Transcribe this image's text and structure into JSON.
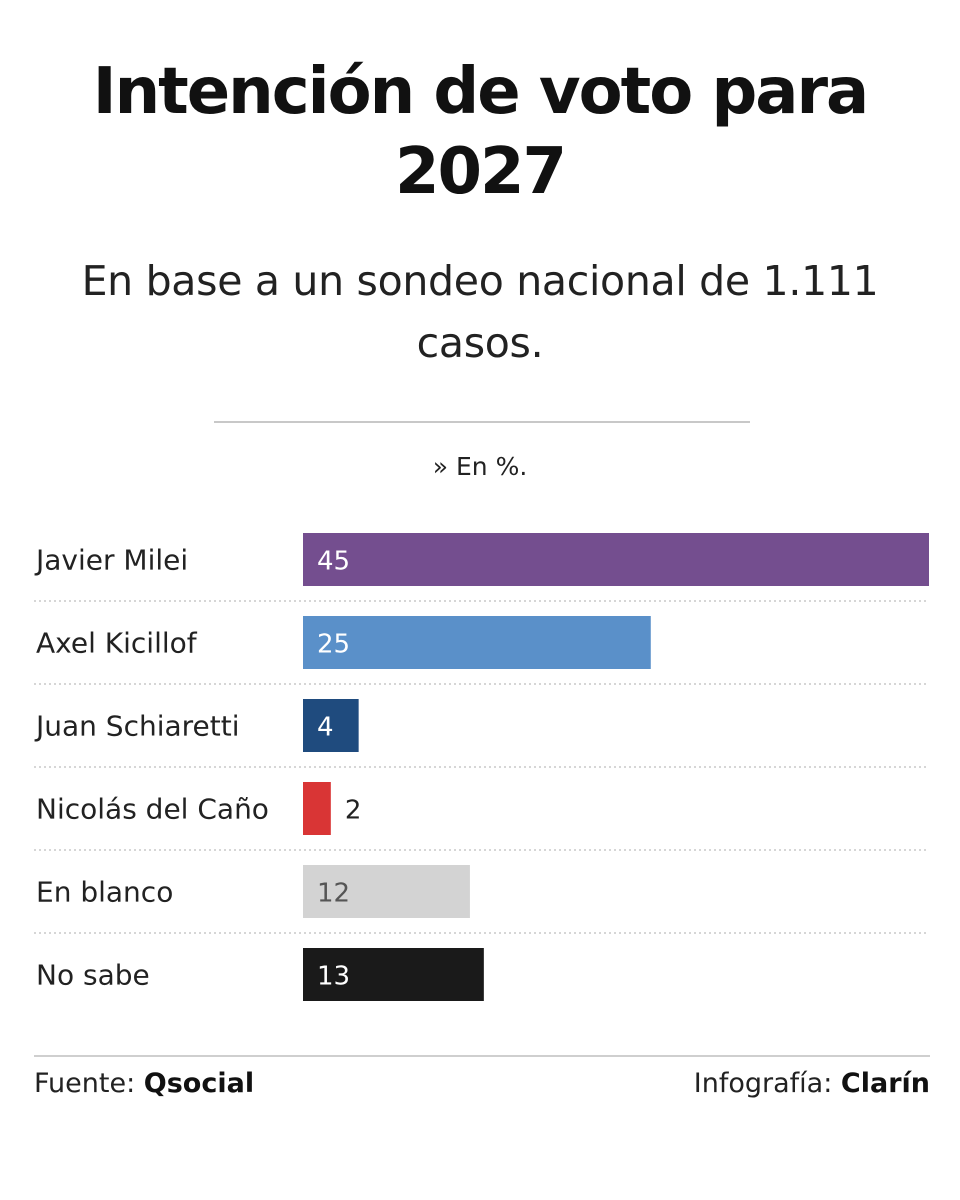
{
  "chart_data": {
    "type": "bar",
    "orientation": "horizontal",
    "title_lines": [
      "Intención de voto para",
      "2027"
    ],
    "subtitle_lines": [
      "En base a un sondeo nacional de 1.111",
      "casos."
    ],
    "unit_note": "» En %.",
    "categories": [
      "Javier Milei",
      "Axel Kicillof",
      "Juan Schiaretti",
      "Nicolás del Caño",
      "En blanco",
      "No sabe"
    ],
    "values": [
      45,
      25,
      4,
      2,
      12,
      13
    ],
    "value_labels": [
      "45",
      "25",
      "4",
      "2",
      "12",
      "13"
    ],
    "colors": [
      "#744e8f",
      "#5a90c9",
      "#1f4b7e",
      "#d93535",
      "#d3d3d3",
      "#1a1a1a"
    ],
    "label_colors": [
      "#ffffff",
      "#ffffff",
      "#ffffff",
      "#222222",
      "#555555",
      "#ffffff"
    ],
    "xlim": [
      0,
      45
    ],
    "grid": false
  },
  "footer": {
    "source_prefix": "Fuente:",
    "source_name": "Qsocial",
    "credit_prefix": "Infografía:",
    "credit_name": "Clarín"
  }
}
